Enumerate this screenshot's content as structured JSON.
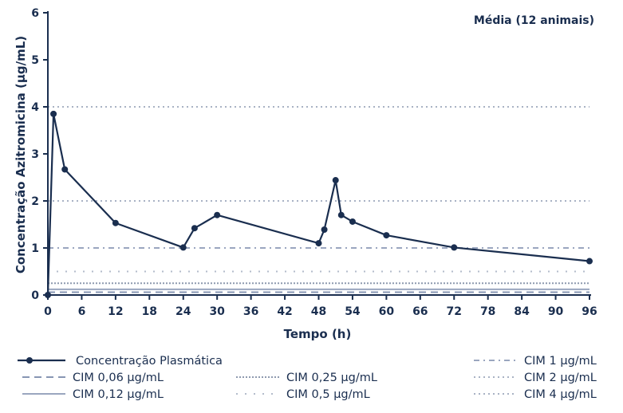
{
  "chart_data": {
    "type": "line",
    "annotation": "Média (12 animais)",
    "xlabel": "Tempo (h)",
    "ylabel": "Concentração Azitromicina (µg/mL)",
    "xlim": [
      0,
      96
    ],
    "ylim": [
      0,
      6
    ],
    "xticks": [
      0,
      6,
      12,
      18,
      24,
      30,
      36,
      42,
      48,
      54,
      60,
      66,
      72,
      78,
      84,
      90,
      96
    ],
    "yticks": [
      0,
      1,
      2,
      3,
      4,
      5,
      6
    ],
    "grid": false,
    "legend_position": "bottom",
    "series": [
      {
        "name": "Concentração Plasmática",
        "color": "#1a2e4f",
        "x": [
          0,
          1,
          3,
          12,
          24,
          26,
          30,
          48,
          49,
          51,
          52,
          54,
          60,
          72,
          96
        ],
        "y": [
          0,
          3.85,
          2.67,
          1.53,
          1.01,
          1.42,
          1.7,
          1.1,
          1.39,
          2.44,
          1.7,
          1.56,
          1.27,
          1.01,
          0.72
        ]
      }
    ],
    "reference_lines": [
      {
        "name": "CIM 0,06 µg/mL",
        "value": 0.06,
        "color": "#8796b3",
        "style": "dashed"
      },
      {
        "name": "CIM 0,12 µg/mL",
        "value": 0.12,
        "color": "#9aa6bf",
        "style": "solid"
      },
      {
        "name": "CIM 0,25 µg/mL",
        "value": 0.25,
        "color": "#8e9aaf",
        "style": "dense-dotted"
      },
      {
        "name": "CIM 0,5 µg/mL",
        "value": 0.5,
        "color": "#b3bccb",
        "style": "sparse-dotted"
      },
      {
        "name": "CIM 1 µg/mL",
        "value": 1,
        "color": "#9aa6bf",
        "style": "dash-dot"
      },
      {
        "name": "CIM 2 µg/mL",
        "value": 2,
        "color": "#a8b2c4",
        "style": "dotted"
      },
      {
        "name": "CIM 4 µg/mL",
        "value": 4,
        "color": "#a8b2c4",
        "style": "dotted"
      }
    ]
  }
}
